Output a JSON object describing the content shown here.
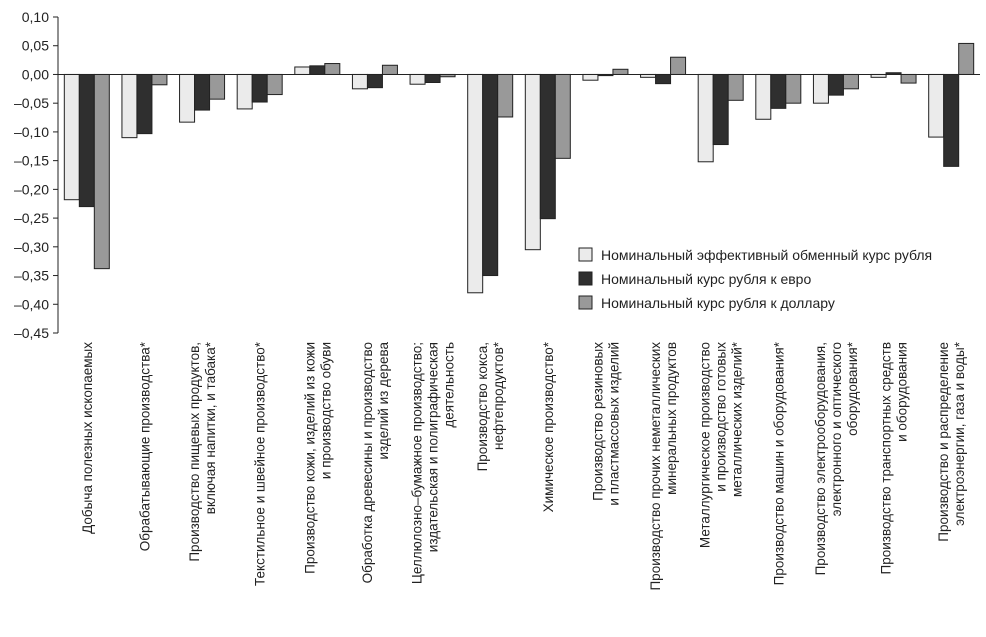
{
  "chart_data": {
    "type": "bar",
    "ylim": [
      -0.45,
      0.1
    ],
    "y_ticks": [
      "0,10",
      "0,05",
      "0,00",
      "–0,05",
      "–0,10",
      "–0,15",
      "–0,20",
      "–0,25",
      "–0,30",
      "–0,35",
      "–0,40",
      "–0,45"
    ],
    "y_tick_values": [
      0.1,
      0.05,
      0.0,
      -0.05,
      -0.1,
      -0.15,
      -0.2,
      -0.25,
      -0.3,
      -0.35,
      -0.4,
      -0.45
    ],
    "grid": false,
    "legend_position": "right",
    "categories": [
      {
        "lines": [
          "Добыча полезных ископаемых"
        ]
      },
      {
        "lines": [
          "Обрабатывающие производства*"
        ]
      },
      {
        "lines": [
          "Производство пищевых продуктов,",
          "включая напитки, и табака*"
        ]
      },
      {
        "lines": [
          "Текстильное и швейное производство*"
        ]
      },
      {
        "lines": [
          "Производство кожи, изделий из кожи",
          "и производство обуви"
        ]
      },
      {
        "lines": [
          "Обработка древесины и производство",
          "изделий из дерева"
        ]
      },
      {
        "lines": [
          "Целлюлозно–бумажное производство;",
          "издательская и полиграфическая",
          "деятельность"
        ]
      },
      {
        "lines": [
          "Производство кокса,",
          "нефтепродуктов*"
        ]
      },
      {
        "lines": [
          "Химическое производство*"
        ]
      },
      {
        "lines": [
          "Производство резиновых",
          "и пластмассовых изделий"
        ]
      },
      {
        "lines": [
          "Производство прочих неметаллических",
          "минеральных продуктов"
        ]
      },
      {
        "lines": [
          "Металлургическое производство",
          "и производство готовых",
          "металлических изделий*"
        ]
      },
      {
        "lines": [
          "Производство машин и оборудования*"
        ]
      },
      {
        "lines": [
          "Производство электрооборудования,",
          "электронного и оптического",
          "оборудования*"
        ]
      },
      {
        "lines": [
          "Производство транспортных средств",
          "и оборудования"
        ]
      },
      {
        "lines": [
          "Производство и распределение",
          "электроэнергии, газа и воды*"
        ]
      }
    ],
    "series": [
      {
        "name": "Номинальный эффективный обменный курс рубля",
        "color": "#ebebeb",
        "values": [
          -0.218,
          -0.11,
          -0.083,
          -0.06,
          0.013,
          -0.025,
          -0.017,
          -0.38,
          -0.305,
          -0.01,
          -0.005,
          -0.152,
          -0.078,
          -0.05,
          -0.005,
          -0.109
        ]
      },
      {
        "name": "Номинальный курс рубля к евро",
        "color": "#2f2f2f",
        "values": [
          -0.23,
          -0.103,
          -0.062,
          -0.048,
          0.015,
          -0.023,
          -0.014,
          -0.35,
          -0.251,
          -0.002,
          -0.016,
          -0.122,
          -0.059,
          -0.036,
          0.003,
          -0.16
        ]
      },
      {
        "name": "Номинальный курс рубля к доллару",
        "color": "#999999",
        "values": [
          -0.338,
          -0.018,
          -0.043,
          -0.035,
          0.019,
          0.016,
          -0.004,
          -0.074,
          -0.146,
          0.009,
          0.03,
          -0.045,
          -0.05,
          -0.025,
          -0.015,
          0.054
        ]
      }
    ]
  }
}
